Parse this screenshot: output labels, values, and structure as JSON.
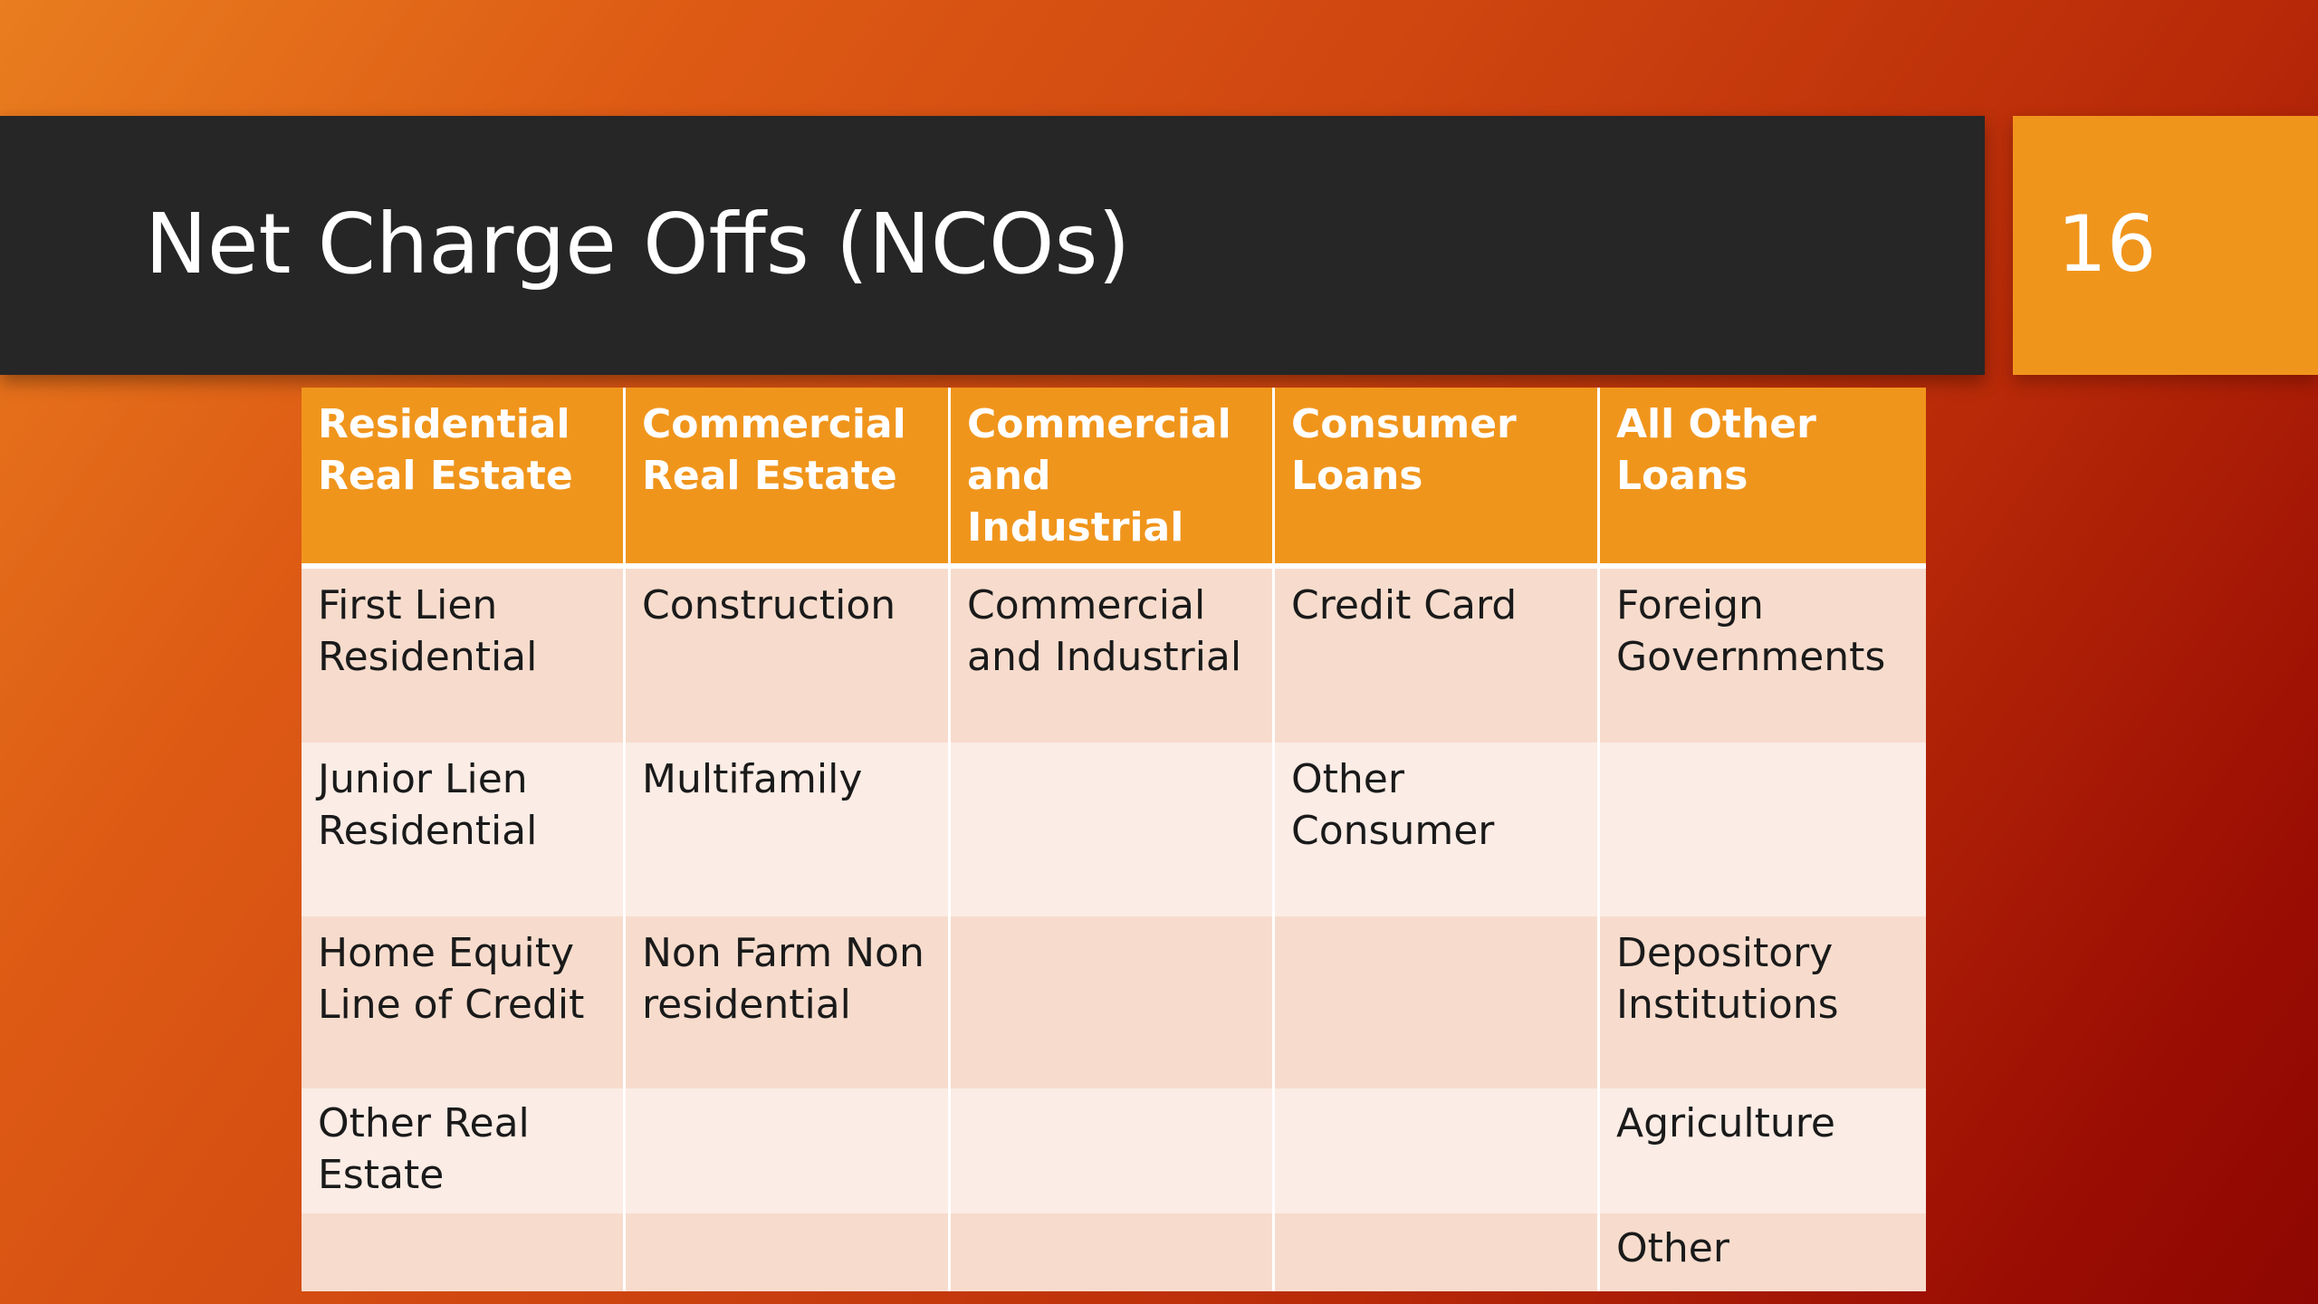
{
  "slide": {
    "title": "Net Charge Offs (NCOs)",
    "number": "16",
    "colors": {
      "title_band": "#262626",
      "accent": "#f0951c",
      "row_shade_a": "#f7dccd",
      "row_shade_b": "#fbece5"
    }
  },
  "table": {
    "headers": [
      "Residential Real Estate",
      "Commercial Real Estate",
      "Commercial and Industrial",
      "Consumer Loans",
      "All Other Loans"
    ],
    "rows": [
      [
        "First Lien Residential",
        "Construction",
        "Commercial and Industrial",
        "Credit Card",
        "Foreign Governments"
      ],
      [
        "Junior Lien Residential",
        "Multifamily",
        "",
        "Other Consumer",
        ""
      ],
      [
        "Home Equity Line of Credit",
        "Non Farm Non residential",
        "",
        "",
        "Depository Institutions"
      ],
      [
        "Other Real Estate",
        "",
        "",
        "",
        "Agriculture"
      ],
      [
        "",
        "",
        "",
        "",
        "Other"
      ]
    ]
  }
}
